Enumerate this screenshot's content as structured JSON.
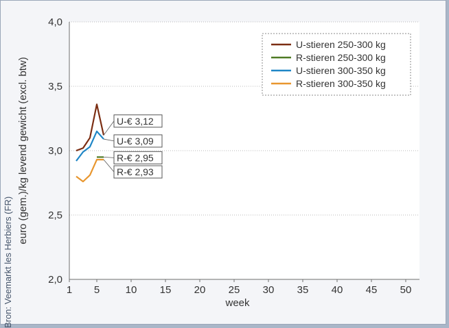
{
  "source": "Bron: Veemarkt les Herbiers (FR)",
  "chart_data": {
    "type": "line",
    "xlabel": "week",
    "ylabel": "euro (gem.)/kg levend gewicht (excl. btw)",
    "xlim": [
      1,
      52
    ],
    "ylim": [
      2.0,
      4.0
    ],
    "x_ticks": [
      1,
      5,
      10,
      15,
      20,
      25,
      30,
      35,
      40,
      45,
      50
    ],
    "y_ticks": [
      2.0,
      2.5,
      3.0,
      3.5,
      4.0
    ],
    "y_tick_labels": [
      "2,0",
      "2,5",
      "3,0",
      "3,5",
      "4,0"
    ],
    "grid": "horizontal dotted",
    "legend_position": "top-right",
    "series": [
      {
        "name": "U-stieren 250-300 kg",
        "color": "#7b2d12",
        "x": [
          2,
          3,
          4,
          5,
          6
        ],
        "y": [
          3.0,
          3.02,
          3.1,
          3.36,
          3.12
        ]
      },
      {
        "name": "R-stieren 250-300 kg",
        "color": "#4e7a24",
        "x": [
          5,
          6
        ],
        "y": [
          2.95,
          2.95
        ]
      },
      {
        "name": "U-stieren 300-350 kg",
        "color": "#1f86c6",
        "x": [
          2,
          3,
          4,
          5,
          6
        ],
        "y": [
          2.92,
          2.99,
          3.03,
          3.15,
          3.09
        ]
      },
      {
        "name": "R-stieren 300-350 kg",
        "color": "#e8962e",
        "x": [
          2,
          3,
          4,
          5,
          6
        ],
        "y": [
          2.8,
          2.76,
          2.81,
          2.93,
          2.93
        ]
      }
    ],
    "annotations": [
      {
        "text": "U-€ 3,12",
        "series": 0
      },
      {
        "text": "U-€ 3,09",
        "series": 2
      },
      {
        "text": "R-€ 2,95",
        "series": 1
      },
      {
        "text": "R-€ 2,93",
        "series": 3
      }
    ]
  }
}
